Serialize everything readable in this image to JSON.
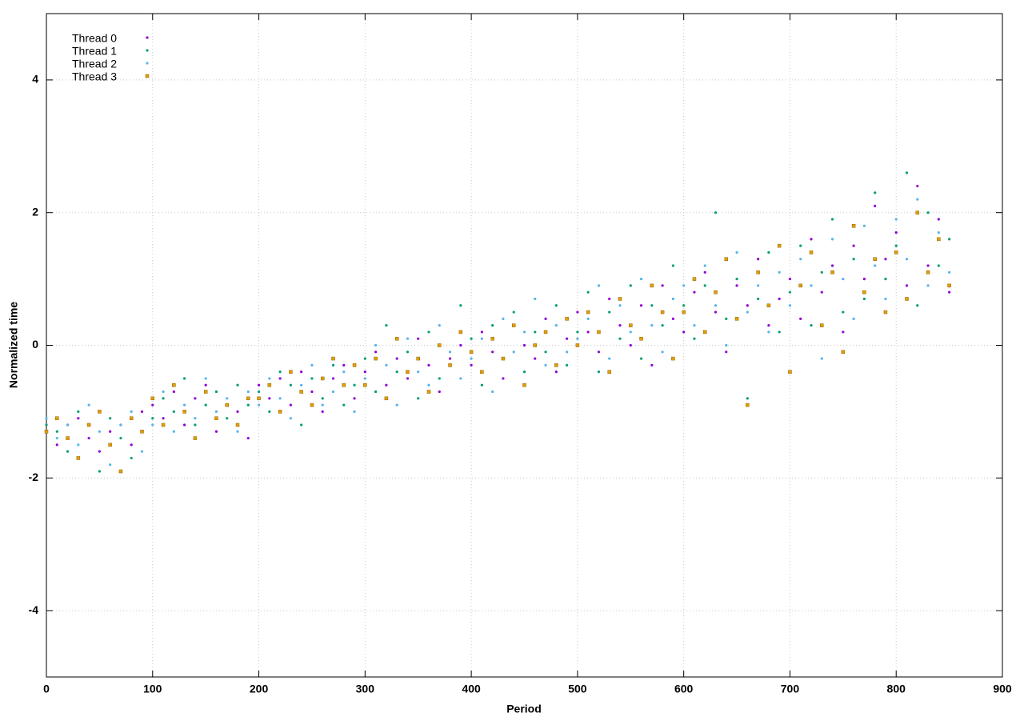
{
  "chart_data": {
    "type": "scatter",
    "xlabel": "Period",
    "ylabel": "Normalized time",
    "xlim": [
      0,
      900
    ],
    "ylim": [
      -5,
      5
    ],
    "xticks": [
      0,
      100,
      200,
      300,
      400,
      500,
      600,
      700,
      800,
      900
    ],
    "yticks": [
      -4,
      -2,
      0,
      2,
      4
    ],
    "grid": true,
    "legend": "top-left",
    "x": [
      0,
      10,
      20,
      30,
      40,
      50,
      60,
      70,
      80,
      90,
      100,
      110,
      120,
      130,
      140,
      150,
      160,
      170,
      180,
      190,
      200,
      210,
      220,
      230,
      240,
      250,
      260,
      270,
      280,
      290,
      300,
      310,
      320,
      330,
      340,
      350,
      360,
      370,
      380,
      390,
      400,
      410,
      420,
      430,
      440,
      450,
      460,
      470,
      480,
      490,
      500,
      510,
      520,
      530,
      540,
      550,
      560,
      570,
      580,
      590,
      600,
      610,
      620,
      630,
      640,
      650,
      660,
      670,
      680,
      690,
      700,
      710,
      720,
      730,
      740,
      750,
      760,
      770,
      780,
      790,
      800,
      810,
      820,
      830,
      840,
      850
    ],
    "series": [
      {
        "name": "Thread 0",
        "color": "#9400d3",
        "marker": "point",
        "values": [
          -1.3,
          -1.5,
          -1.2,
          -1.1,
          -1.4,
          -1.6,
          -1.3,
          -1.2,
          -1.5,
          -1.0,
          -0.9,
          -1.1,
          -0.7,
          -1.2,
          -0.8,
          -0.6,
          -1.3,
          -0.9,
          -1.0,
          -1.4,
          -0.6,
          -0.8,
          -0.5,
          -0.9,
          -0.4,
          -0.7,
          -1.0,
          -0.5,
          -0.3,
          -0.8,
          -0.4,
          -0.1,
          -0.6,
          -0.2,
          -0.5,
          0.1,
          -0.3,
          -0.7,
          -0.2,
          0.0,
          -0.3,
          0.2,
          -0.1,
          -0.5,
          0.3,
          0.0,
          -0.2,
          0.4,
          -0.4,
          0.1,
          0.5,
          0.2,
          -0.1,
          0.7,
          0.3,
          0.0,
          0.6,
          -0.3,
          0.9,
          0.4,
          0.2,
          0.8,
          1.1,
          0.5,
          -0.1,
          0.9,
          0.6,
          1.3,
          0.3,
          0.7,
          1.0,
          0.4,
          1.6,
          0.8,
          1.2,
          0.2,
          1.5,
          1.0,
          2.1,
          1.3,
          1.7,
          0.9,
          2.4,
          1.2,
          1.9,
          0.8
        ]
      },
      {
        "name": "Thread 1",
        "color": "#009e73",
        "marker": "point",
        "values": [
          -1.2,
          -1.3,
          -1.6,
          -1.0,
          -1.2,
          -1.9,
          -1.1,
          -1.4,
          -1.7,
          -1.3,
          -1.1,
          -0.8,
          -1.0,
          -0.5,
          -1.2,
          -0.9,
          -0.7,
          -1.1,
          -0.6,
          -0.9,
          -0.7,
          -1.0,
          -0.4,
          -0.6,
          -1.2,
          -0.5,
          -0.8,
          -0.3,
          -0.9,
          -0.6,
          -0.2,
          -0.7,
          0.3,
          -0.4,
          -0.1,
          -0.8,
          0.2,
          -0.5,
          -0.3,
          0.6,
          0.1,
          -0.6,
          0.3,
          -0.2,
          0.5,
          -0.4,
          0.2,
          -0.1,
          0.6,
          -0.3,
          0.2,
          0.8,
          -0.4,
          0.5,
          0.1,
          0.9,
          -0.2,
          0.6,
          0.3,
          1.2,
          0.6,
          0.1,
          0.9,
          2.0,
          0.4,
          1.0,
          -0.8,
          0.7,
          1.4,
          0.2,
          0.8,
          1.5,
          0.3,
          1.1,
          1.9,
          0.5,
          1.3,
          0.7,
          2.3,
          1.0,
          1.5,
          2.6,
          0.6,
          2.0,
          1.2,
          1.6
        ]
      },
      {
        "name": "Thread 2",
        "color": "#56b4e9",
        "marker": "point",
        "values": [
          -1.1,
          -1.4,
          -1.2,
          -1.5,
          -0.9,
          -1.3,
          -1.8,
          -1.2,
          -1.0,
          -1.6,
          -1.2,
          -0.7,
          -1.3,
          -0.9,
          -1.1,
          -0.5,
          -1.0,
          -0.8,
          -1.3,
          -0.7,
          -0.9,
          -0.5,
          -0.8,
          -1.1,
          -0.6,
          -0.3,
          -0.9,
          -0.7,
          -0.4,
          -1.0,
          -0.5,
          0.0,
          -0.3,
          -0.9,
          0.1,
          -0.4,
          -0.6,
          0.3,
          -0.1,
          -0.5,
          -0.2,
          0.1,
          -0.7,
          0.4,
          -0.1,
          0.2,
          0.7,
          -0.3,
          0.3,
          -0.1,
          0.1,
          0.4,
          0.9,
          -0.2,
          0.6,
          0.2,
          1.0,
          0.3,
          -0.1,
          0.7,
          0.9,
          0.3,
          1.2,
          0.6,
          0.0,
          1.4,
          0.5,
          0.9,
          0.2,
          1.1,
          0.6,
          1.3,
          0.9,
          -0.2,
          1.6,
          1.0,
          0.4,
          1.8,
          1.2,
          0.7,
          1.9,
          1.3,
          2.2,
          0.9,
          1.7,
          1.1
        ]
      },
      {
        "name": "Thread 3",
        "color": "#e69f00",
        "marker": "square",
        "values": [
          -1.3,
          -1.1,
          -1.4,
          -1.7,
          -1.2,
          -1.0,
          -1.5,
          -1.9,
          -1.1,
          -1.3,
          -0.8,
          -1.2,
          -0.6,
          -1.0,
          -1.4,
          -0.7,
          -1.1,
          -0.9,
          -1.2,
          -0.8,
          -0.8,
          -0.6,
          -1.0,
          -0.4,
          -0.7,
          -0.9,
          -0.5,
          -0.2,
          -0.6,
          -0.3,
          -0.6,
          -0.2,
          -0.8,
          0.1,
          -0.4,
          -0.2,
          -0.7,
          0.0,
          -0.3,
          0.2,
          -0.1,
          -0.4,
          0.1,
          -0.2,
          0.3,
          -0.6,
          0.0,
          0.2,
          -0.3,
          0.4,
          0.0,
          0.5,
          0.2,
          -0.4,
          0.7,
          0.3,
          0.1,
          0.9,
          0.5,
          -0.2,
          0.5,
          1.0,
          0.2,
          0.8,
          1.3,
          0.4,
          -0.9,
          1.1,
          0.6,
          1.5,
          -0.4,
          0.9,
          1.4,
          0.3,
          1.1,
          -0.1,
          1.8,
          0.8,
          1.3,
          0.5,
          1.4,
          0.7,
          2.0,
          1.1,
          1.6,
          0.9
        ]
      }
    ]
  }
}
